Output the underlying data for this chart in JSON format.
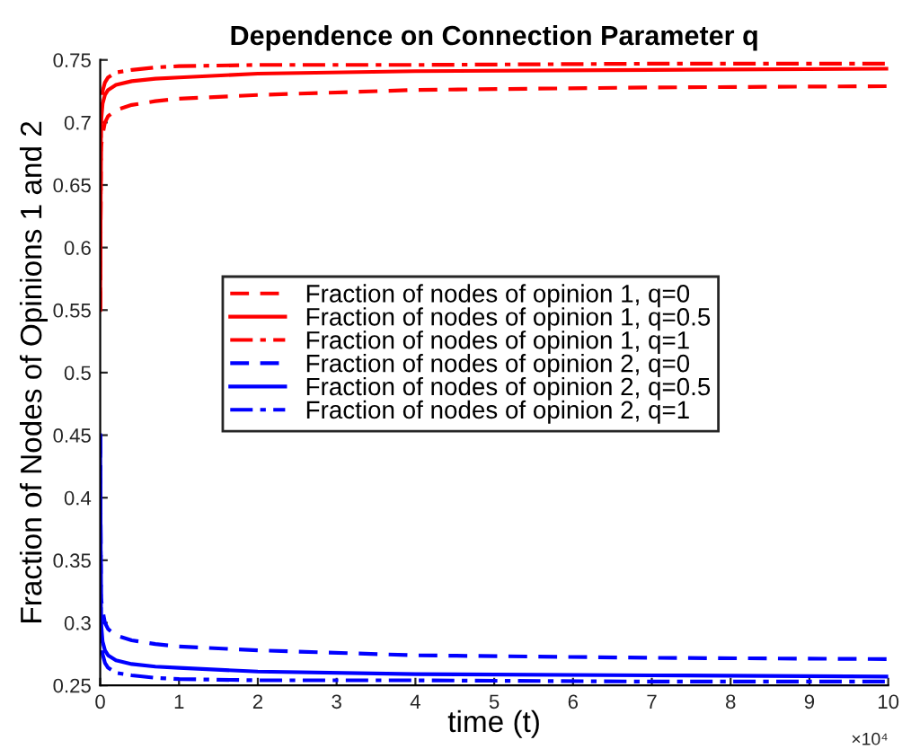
{
  "chart_data": {
    "type": "line",
    "title": "Dependence on Connection Parameter q",
    "xlabel": "time (t)",
    "ylabel": "Fraction of Nodes of Opinions 1 and 2",
    "x": [
      0,
      0.01,
      0.03,
      0.06,
      0.1,
      0.2,
      0.4,
      0.7,
      1,
      2,
      4,
      7,
      10
    ],
    "series": [
      {
        "name": "Fraction of nodes of opinion 1, q=0",
        "color": "#ff0000",
        "line_style": "dashed",
        "values": [
          0.55,
          0.68,
          0.69,
          0.7,
          0.705,
          0.71,
          0.714,
          0.717,
          0.719,
          0.722,
          0.726,
          0.728,
          0.729
        ]
      },
      {
        "name": "Fraction of nodes of opinion 1, q=0.5",
        "color": "#ff0000",
        "line_style": "solid",
        "values": [
          0.55,
          0.7,
          0.715,
          0.722,
          0.726,
          0.73,
          0.733,
          0.735,
          0.736,
          0.739,
          0.741,
          0.742,
          0.743
        ]
      },
      {
        "name": "Fraction of nodes of opinion 1, q=1",
        "color": "#ff0000",
        "line_style": "dashdot",
        "values": [
          0.55,
          0.71,
          0.725,
          0.732,
          0.736,
          0.74,
          0.742,
          0.744,
          0.745,
          0.746,
          0.746,
          0.747,
          0.747
        ]
      },
      {
        "name": "Fraction of nodes of opinion 2, q=0",
        "color": "#0000ff",
        "line_style": "dashed",
        "values": [
          0.45,
          0.32,
          0.31,
          0.3,
          0.295,
          0.29,
          0.286,
          0.283,
          0.281,
          0.278,
          0.274,
          0.272,
          0.271
        ]
      },
      {
        "name": "Fraction of nodes of opinion 2, q=0.5",
        "color": "#0000ff",
        "line_style": "solid",
        "values": [
          0.45,
          0.3,
          0.285,
          0.278,
          0.274,
          0.27,
          0.267,
          0.265,
          0.264,
          0.261,
          0.259,
          0.258,
          0.257
        ]
      },
      {
        "name": "Fraction of nodes of opinion 2, q=1",
        "color": "#0000ff",
        "line_style": "dashdot",
        "values": [
          0.45,
          0.29,
          0.275,
          0.268,
          0.264,
          0.26,
          0.258,
          0.256,
          0.255,
          0.254,
          0.254,
          0.253,
          0.253
        ]
      }
    ],
    "xlim": [
      0,
      10
    ],
    "xticks": [
      0,
      1,
      2,
      3,
      4,
      5,
      6,
      7,
      8,
      9,
      10
    ],
    "ylim": [
      0.25,
      0.75
    ],
    "yticks": [
      0.25,
      0.3,
      0.35,
      0.4,
      0.45,
      0.5,
      0.55,
      0.6,
      0.65,
      0.7,
      0.75
    ],
    "annotations": [
      "×10⁴"
    ],
    "legend": "center",
    "grid": false
  }
}
